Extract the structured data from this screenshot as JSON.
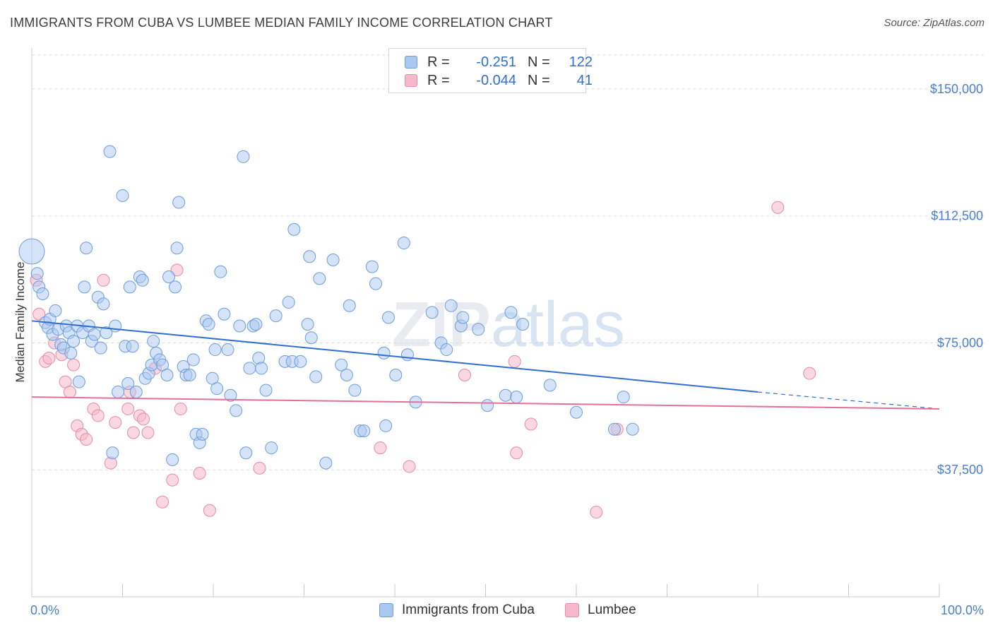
{
  "title": "IMMIGRANTS FROM CUBA VS LUMBEE MEDIAN FAMILY INCOME CORRELATION CHART",
  "source": "Source: ZipAtlas.com",
  "watermark": "ZIPatlas",
  "legend": {
    "rows": [
      {
        "r_label": "R =",
        "r_value": "-0.251",
        "n_label": "N =",
        "n_value": "122"
      },
      {
        "r_label": "R =",
        "r_value": "-0.044",
        "n_label": "N =",
        "n_value": "41"
      }
    ]
  },
  "bottom_legend": {
    "series1": "Immigrants from Cuba",
    "series2": "Lumbee"
  },
  "colors": {
    "blue_fill": "#a9c8f0",
    "blue_stroke": "#6d9ddc",
    "blue_line": "#2f6fd0",
    "pink_fill": "#f6b8cb",
    "pink_stroke": "#e88aa8",
    "pink_line": "#e46f9a",
    "axis_text": "#4a7fd0",
    "grid": "#dcdcdc"
  },
  "chart_data": {
    "type": "scatter",
    "title": "IMMIGRANTS FROM CUBA VS LUMBEE MEDIAN FAMILY INCOME CORRELATION CHART",
    "xlabel": "",
    "ylabel": "Median Family Income",
    "xlim": [
      0,
      100
    ],
    "ylim": [
      0,
      160000
    ],
    "x_tick_labels": [
      "0.0%",
      "100.0%"
    ],
    "y_ticks": [
      37500,
      75000,
      112500,
      150000
    ],
    "y_tick_labels": [
      "$37,500",
      "$75,000",
      "$112,500",
      "$150,000"
    ],
    "series": [
      {
        "name": "Immigrants from Cuba",
        "r": -0.251,
        "n": 122,
        "trend": {
          "x0": 0,
          "y0": 81500,
          "x1": 80,
          "y1": 60500,
          "dash_to_x": 100,
          "dash_to_y": 55500
        },
        "points": [
          [
            0.0,
            102000
          ],
          [
            0.6,
            95500
          ],
          [
            0.8,
            91500
          ],
          [
            1.2,
            89500
          ],
          [
            1.5,
            81000
          ],
          [
            1.8,
            79500
          ],
          [
            2.0,
            82000
          ],
          [
            2.3,
            77500
          ],
          [
            2.6,
            84500
          ],
          [
            2.9,
            79000
          ],
          [
            3.2,
            74500
          ],
          [
            3.5,
            73500
          ],
          [
            3.8,
            80000
          ],
          [
            4.1,
            78000
          ],
          [
            4.3,
            72000
          ],
          [
            4.6,
            75500
          ],
          [
            5.0,
            80000
          ],
          [
            5.2,
            63500
          ],
          [
            5.6,
            78000
          ],
          [
            5.8,
            91500
          ],
          [
            6.0,
            103000
          ],
          [
            6.3,
            80000
          ],
          [
            6.6,
            75500
          ],
          [
            6.9,
            77500
          ],
          [
            7.3,
            88500
          ],
          [
            7.6,
            73500
          ],
          [
            7.9,
            86500
          ],
          [
            8.2,
            78000
          ],
          [
            8.6,
            131500
          ],
          [
            8.9,
            42500
          ],
          [
            9.2,
            80000
          ],
          [
            9.5,
            60500
          ],
          [
            10.0,
            118500
          ],
          [
            10.3,
            74000
          ],
          [
            10.6,
            63000
          ],
          [
            10.8,
            91500
          ],
          [
            11.1,
            74000
          ],
          [
            11.5,
            60500
          ],
          [
            11.9,
            94500
          ],
          [
            12.2,
            93500
          ],
          [
            12.5,
            64500
          ],
          [
            12.9,
            66000
          ],
          [
            13.2,
            68500
          ],
          [
            13.4,
            75500
          ],
          [
            13.7,
            72000
          ],
          [
            14.1,
            70000
          ],
          [
            14.4,
            68500
          ],
          [
            14.9,
            65500
          ],
          [
            15.1,
            94500
          ],
          [
            15.5,
            40500
          ],
          [
            15.8,
            91500
          ],
          [
            16.0,
            103000
          ],
          [
            16.2,
            116500
          ],
          [
            16.7,
            68000
          ],
          [
            17.0,
            65500
          ],
          [
            17.4,
            65500
          ],
          [
            17.8,
            70000
          ],
          [
            18.1,
            48000
          ],
          [
            18.5,
            45500
          ],
          [
            18.8,
            48000
          ],
          [
            19.2,
            81500
          ],
          [
            19.5,
            80500
          ],
          [
            19.9,
            64500
          ],
          [
            20.2,
            73000
          ],
          [
            20.4,
            61500
          ],
          [
            20.8,
            96000
          ],
          [
            21.2,
            83500
          ],
          [
            21.6,
            73000
          ],
          [
            21.9,
            59500
          ],
          [
            22.5,
            55000
          ],
          [
            22.9,
            80000
          ],
          [
            23.3,
            130000
          ],
          [
            23.6,
            42500
          ],
          [
            24.0,
            67500
          ],
          [
            24.4,
            80000
          ],
          [
            24.7,
            80500
          ],
          [
            25.0,
            70500
          ],
          [
            25.3,
            67500
          ],
          [
            25.8,
            61000
          ],
          [
            26.4,
            44000
          ],
          [
            26.9,
            83000
          ],
          [
            27.9,
            69500
          ],
          [
            28.3,
            87000
          ],
          [
            28.7,
            69500
          ],
          [
            28.9,
            108500
          ],
          [
            29.6,
            69500
          ],
          [
            30.4,
            80500
          ],
          [
            30.6,
            100500
          ],
          [
            30.8,
            76500
          ],
          [
            31.3,
            65000
          ],
          [
            31.7,
            94000
          ],
          [
            32.4,
            39500
          ],
          [
            33.2,
            99500
          ],
          [
            34.1,
            68500
          ],
          [
            34.7,
            65500
          ],
          [
            35.0,
            86000
          ],
          [
            35.6,
            61000
          ],
          [
            36.2,
            49000
          ],
          [
            36.6,
            49000
          ],
          [
            37.5,
            97500
          ],
          [
            37.9,
            92500
          ],
          [
            38.8,
            72000
          ],
          [
            39.0,
            50500
          ],
          [
            39.3,
            82500
          ],
          [
            40.1,
            65500
          ],
          [
            41.0,
            104500
          ],
          [
            41.4,
            71500
          ],
          [
            42.3,
            57500
          ],
          [
            44.1,
            84000
          ],
          [
            45.1,
            75000
          ],
          [
            45.7,
            73000
          ],
          [
            46.2,
            86000
          ],
          [
            47.3,
            80000
          ],
          [
            47.5,
            82500
          ],
          [
            49.2,
            79000
          ],
          [
            50.2,
            56500
          ],
          [
            52.2,
            59500
          ],
          [
            52.8,
            84000
          ],
          [
            53.4,
            59000
          ],
          [
            54.1,
            80500
          ],
          [
            57.1,
            62500
          ],
          [
            60.0,
            54500
          ],
          [
            64.2,
            49500
          ],
          [
            65.2,
            59000
          ],
          [
            66.2,
            49500
          ]
        ]
      },
      {
        "name": "Lumbee",
        "r": -0.044,
        "n": 41,
        "trend": {
          "x0": 0,
          "y0": 59000,
          "x1": 100,
          "y1": 55500
        },
        "points": [
          [
            0.5,
            93500
          ],
          [
            0.8,
            83500
          ],
          [
            1.5,
            69500
          ],
          [
            1.9,
            70500
          ],
          [
            2.5,
            75000
          ],
          [
            3.3,
            71500
          ],
          [
            3.7,
            63500
          ],
          [
            4.2,
            60500
          ],
          [
            4.6,
            68500
          ],
          [
            5.0,
            50500
          ],
          [
            5.5,
            48000
          ],
          [
            6.0,
            46500
          ],
          [
            6.8,
            55500
          ],
          [
            7.3,
            53500
          ],
          [
            7.9,
            93500
          ],
          [
            8.7,
            39500
          ],
          [
            9.2,
            51500
          ],
          [
            10.6,
            55500
          ],
          [
            10.8,
            60500
          ],
          [
            11.2,
            48500
          ],
          [
            11.9,
            53500
          ],
          [
            12.3,
            52500
          ],
          [
            12.8,
            48500
          ],
          [
            13.6,
            67500
          ],
          [
            14.4,
            28000
          ],
          [
            15.5,
            34500
          ],
          [
            16.0,
            96500
          ],
          [
            16.4,
            55500
          ],
          [
            18.5,
            36500
          ],
          [
            19.6,
            25500
          ],
          [
            25.1,
            38000
          ],
          [
            38.4,
            44000
          ],
          [
            41.6,
            38500
          ],
          [
            47.7,
            65500
          ],
          [
            53.2,
            69500
          ],
          [
            53.4,
            42500
          ],
          [
            55.0,
            51000
          ],
          [
            62.2,
            25000
          ],
          [
            64.5,
            49500
          ],
          [
            82.2,
            115000
          ],
          [
            85.7,
            66000
          ]
        ]
      }
    ]
  }
}
